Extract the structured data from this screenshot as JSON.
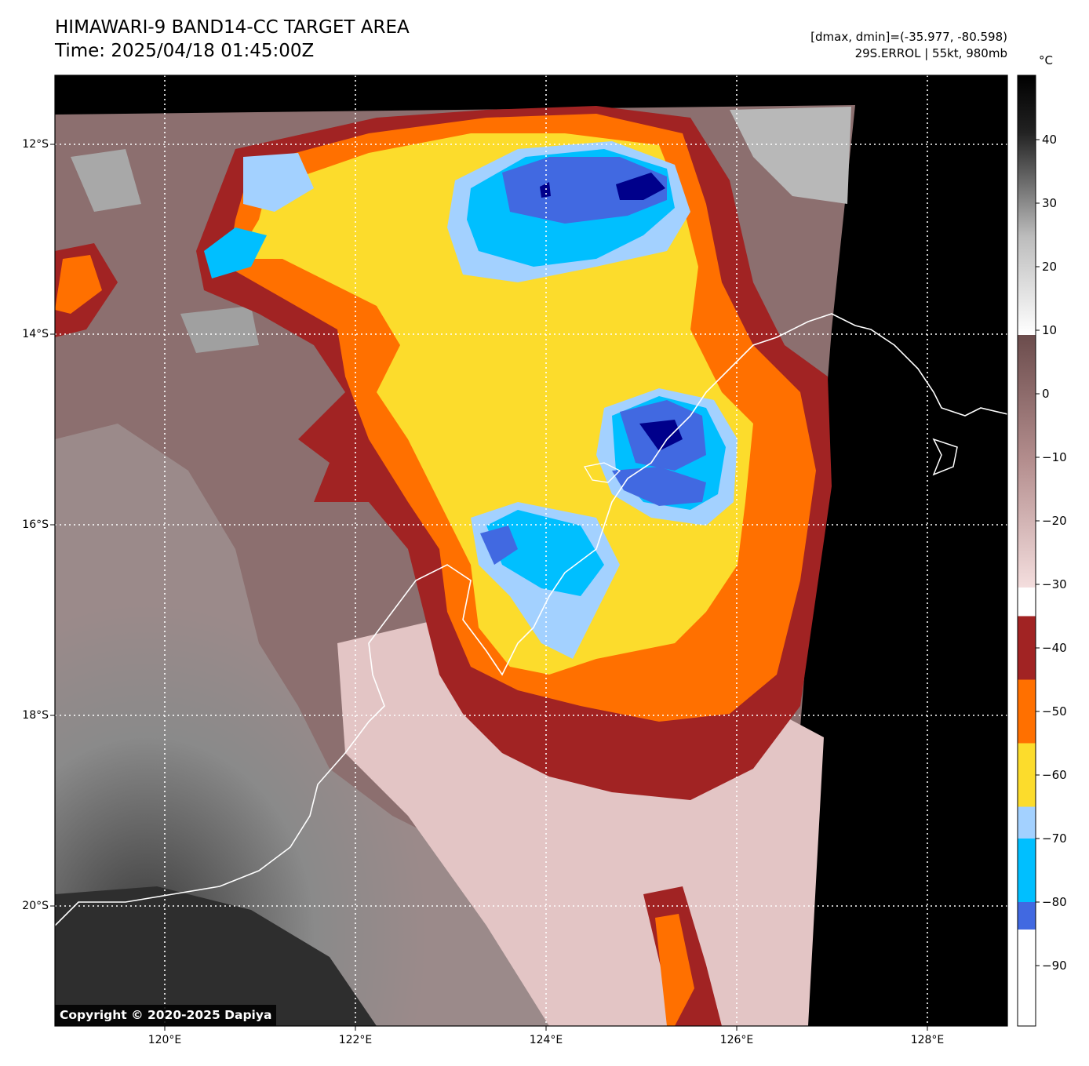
{
  "header": {
    "title": "HIMAWARI-9 BAND14-CC TARGET AREA",
    "time": "Time: 2025/04/18 01:45:00Z",
    "dmax_dmin": "[dmax, dmin]=(-35.977, -80.598)",
    "storm": "29S.ERROL | 55kt, 980mb"
  },
  "map": {
    "lat_labels": [
      "12°S",
      "14°S",
      "16°S",
      "18°S",
      "20°S"
    ],
    "lon_labels": [
      "120°E",
      "122°E",
      "124°E",
      "126°E",
      "128°E"
    ],
    "copyright": "Copyright © 2020-2025 Dapiya"
  },
  "colorbar": {
    "unit": "°C",
    "ticks": [
      "40",
      "30",
      "20",
      "10",
      "0",
      "−10",
      "−20",
      "−30",
      "−40",
      "−50",
      "−60",
      "−70",
      "−80",
      "−90"
    ],
    "bands": [
      {
        "from": -90,
        "to": -85,
        "color": "#00008b"
      },
      {
        "from": -85,
        "to": -80,
        "color": "#4169e1"
      },
      {
        "from": -80,
        "to": -70,
        "color": "#00bfff"
      },
      {
        "from": -70,
        "to": -65,
        "color": "#a3d1ff"
      },
      {
        "from": -65,
        "to": -55,
        "color": "#fcdc2c"
      },
      {
        "from": -55,
        "to": -45,
        "color": "#ff7000"
      },
      {
        "from": -45,
        "to": -35,
        "color": "#a12323"
      }
    ]
  }
}
